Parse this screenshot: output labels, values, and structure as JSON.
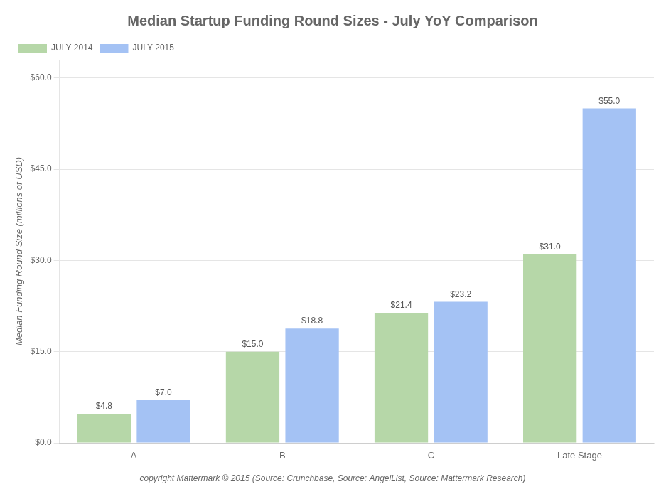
{
  "chart_data": {
    "type": "bar",
    "title": "Median Startup Funding Round Sizes - July YoY Comparison",
    "categories": [
      "A",
      "B",
      "C",
      "Late Stage"
    ],
    "series": [
      {
        "name": "JULY 2014",
        "color": "#b6d7a8",
        "values": [
          4.8,
          15.0,
          21.4,
          31.0
        ],
        "value_labels": [
          "$4.8",
          "$15.0",
          "$21.4",
          "$31.0"
        ]
      },
      {
        "name": "JULY 2015",
        "color": "#a4c2f4",
        "values": [
          7.0,
          18.8,
          23.2,
          55.0
        ],
        "value_labels": [
          "$7.0",
          "$18.8",
          "$23.2",
          "$55.0"
        ]
      }
    ],
    "ylabel": "Median Funding Round Size (millions of USD)",
    "ylim": [
      0,
      63
    ],
    "yticks": [
      {
        "value": 0.0,
        "label": "$0.0"
      },
      {
        "value": 15.0,
        "label": "$15.0"
      },
      {
        "value": 30.0,
        "label": "$30.0"
      },
      {
        "value": 45.0,
        "label": "$45.0"
      },
      {
        "value": 60.0,
        "label": "$60.0"
      }
    ],
    "grid": true,
    "legend": "upper left",
    "data_labels": true,
    "annotations": [
      "copyright Mattermark © 2015 (Source: Crunchbase, Source: AngelList, Source: Mattermark Research)"
    ]
  }
}
